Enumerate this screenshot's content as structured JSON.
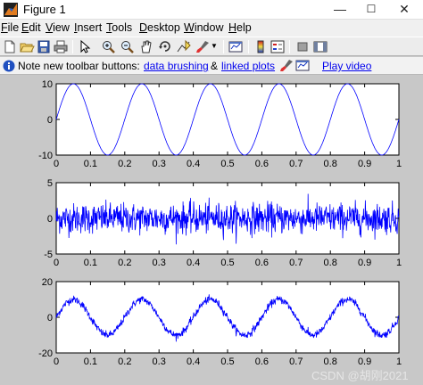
{
  "window": {
    "title": "Figure 1",
    "min_glyph": "—",
    "max_glyph": "☐",
    "close_glyph": "✕"
  },
  "menu": {
    "items": [
      {
        "label": "File",
        "mnemonic": "F",
        "rest": "ile"
      },
      {
        "label": "Edit",
        "mnemonic": "E",
        "rest": "dit"
      },
      {
        "label": "View",
        "mnemonic": "V",
        "rest": "iew"
      },
      {
        "label": "Insert",
        "mnemonic": "I",
        "rest": "nsert"
      },
      {
        "label": "Tools",
        "mnemonic": "T",
        "rest": "ools"
      },
      {
        "label": "Desktop",
        "mnemonic": "D",
        "rest": "esktop"
      },
      {
        "label": "Window",
        "mnemonic": "W",
        "rest": "indow"
      },
      {
        "label": "Help",
        "mnemonic": "H",
        "rest": "elp"
      }
    ]
  },
  "toolbar": {
    "buttons": [
      "new-figure-icon",
      "open-file-icon",
      "save-icon",
      "print-icon",
      "edit-plot-arrow-icon",
      "zoom-in-icon",
      "zoom-out-icon",
      "pan-hand-icon",
      "rotate-3d-icon",
      "data-cursor-icon",
      "brush-icon",
      "link-plot-icon",
      "colorbar-icon",
      "legend-icon",
      "hide-plot-tools-icon",
      "show-plot-tools-icon"
    ]
  },
  "infobar": {
    "text": "Note new toolbar buttons:",
    "link1": "data brushing",
    "amp": "&",
    "link2": "linked plots",
    "link3": "Play video"
  },
  "watermark": "CSDN @胡刚2021",
  "colors": {
    "line": "#0000ff",
    "axes_bg": "#ffffff",
    "figure_bg": "#c8c8c8"
  },
  "chart_data": [
    {
      "type": "line",
      "series_formula": "10*sin(2*pi*5*t)",
      "x_range": [
        0,
        1
      ],
      "ylim": [
        -10,
        10
      ],
      "xticks": [
        "0",
        "0.1",
        "0.2",
        "0.3",
        "0.4",
        "0.5",
        "0.6",
        "0.7",
        "0.8",
        "0.9",
        "1"
      ],
      "yticks": [
        "10",
        "0",
        "-10"
      ],
      "grid": false
    },
    {
      "type": "line",
      "series_formula": "random noise",
      "x_range": [
        0,
        1
      ],
      "ylim": [
        -5,
        5
      ],
      "xticks": [
        "0",
        "0.1",
        "0.2",
        "0.3",
        "0.4",
        "0.5",
        "0.6",
        "0.7",
        "0.8",
        "0.9",
        "1"
      ],
      "yticks": [
        "5",
        "0",
        "-5"
      ],
      "grid": false
    },
    {
      "type": "line",
      "series_formula": "10*sin(2*pi*5*t) + noise",
      "x_range": [
        0,
        1
      ],
      "ylim": [
        -20,
        20
      ],
      "xticks": [
        "0",
        "0.1",
        "0.2",
        "0.3",
        "0.4",
        "0.5",
        "0.6",
        "0.7",
        "0.8",
        "0.9",
        "1"
      ],
      "yticks": [
        "20",
        "0",
        "-20"
      ],
      "grid": false
    }
  ]
}
